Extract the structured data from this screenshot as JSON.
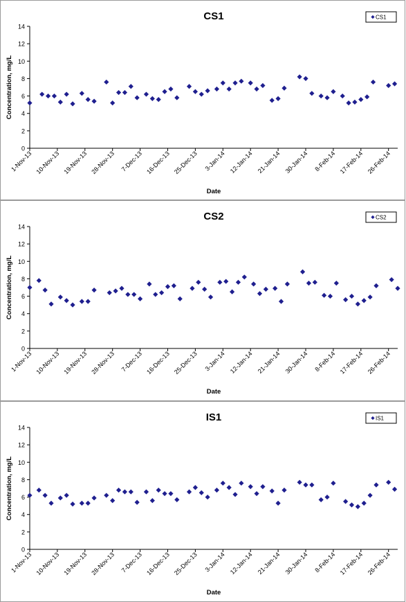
{
  "chart_data": [
    {
      "type": "scatter",
      "title": "CS1",
      "xlabel": "Date",
      "ylabel": "Concentration, mg/L",
      "ylim": [
        0,
        14
      ],
      "yticks": [
        "0",
        "2",
        "4",
        "6",
        "8",
        "10",
        "12",
        "14"
      ],
      "xlim": [
        "2013-11-01",
        "2014-03-01"
      ],
      "xtick_labels": [
        "1-Nov-13",
        "10-Nov-13",
        "19-Nov-13",
        "28-Nov-13",
        "7-Dec-13",
        "16-Dec-13",
        "25-Dec-13",
        "3-Jan-14",
        "12-Jan-14",
        "21-Jan-14",
        "30-Jan-14",
        "8-Feb-14",
        "17-Feb-14",
        "26-Feb-14"
      ],
      "grid": false,
      "legend_position": "top-right",
      "series": [
        {
          "name": "CS1",
          "color": "#1F1F8F",
          "points": [
            [
              "2013-11-01",
              5.2
            ],
            [
              "2013-11-05",
              6.2
            ],
            [
              "2013-11-07",
              6.0
            ],
            [
              "2013-11-09",
              6.0
            ],
            [
              "2013-11-11",
              5.3
            ],
            [
              "2013-11-13",
              6.2
            ],
            [
              "2013-11-15",
              5.1
            ],
            [
              "2013-11-18",
              6.3
            ],
            [
              "2013-11-20",
              5.6
            ],
            [
              "2013-11-22",
              5.4
            ],
            [
              "2013-11-26",
              7.6
            ],
            [
              "2013-11-28",
              5.2
            ],
            [
              "2013-11-30",
              6.4
            ],
            [
              "2013-12-02",
              6.4
            ],
            [
              "2013-12-04",
              7.1
            ],
            [
              "2013-12-06",
              5.8
            ],
            [
              "2013-12-09",
              6.2
            ],
            [
              "2013-12-11",
              5.7
            ],
            [
              "2013-12-13",
              5.6
            ],
            [
              "2013-12-15",
              6.5
            ],
            [
              "2013-12-17",
              6.8
            ],
            [
              "2013-12-19",
              5.8
            ],
            [
              "2013-12-23",
              7.1
            ],
            [
              "2013-12-25",
              6.5
            ],
            [
              "2013-12-27",
              6.2
            ],
            [
              "2013-12-29",
              6.6
            ],
            [
              "2014-01-01",
              6.8
            ],
            [
              "2014-01-03",
              7.5
            ],
            [
              "2014-01-05",
              6.8
            ],
            [
              "2014-01-07",
              7.5
            ],
            [
              "2014-01-09",
              7.7
            ],
            [
              "2014-01-12",
              7.5
            ],
            [
              "2014-01-14",
              6.8
            ],
            [
              "2014-01-16",
              7.2
            ],
            [
              "2014-01-19",
              5.5
            ],
            [
              "2014-01-21",
              5.7
            ],
            [
              "2014-01-23",
              6.9
            ],
            [
              "2014-01-28",
              8.2
            ],
            [
              "2014-01-30",
              8.0
            ],
            [
              "2014-02-01",
              6.3
            ],
            [
              "2014-02-04",
              6.0
            ],
            [
              "2014-02-06",
              5.8
            ],
            [
              "2014-02-08",
              6.5
            ],
            [
              "2014-02-11",
              6.0
            ],
            [
              "2014-02-13",
              5.2
            ],
            [
              "2014-02-15",
              5.3
            ],
            [
              "2014-02-17",
              5.6
            ],
            [
              "2014-02-19",
              5.9
            ],
            [
              "2014-02-21",
              7.6
            ],
            [
              "2014-02-26",
              7.2
            ],
            [
              "2014-02-28",
              7.4
            ]
          ]
        }
      ]
    },
    {
      "type": "scatter",
      "title": "CS2",
      "xlabel": "Date",
      "ylabel": "Concentration, mg/L",
      "ylim": [
        0,
        14
      ],
      "yticks": [
        "0",
        "2",
        "4",
        "6",
        "8",
        "10",
        "12",
        "14"
      ],
      "xlim": [
        "2013-11-01",
        "2014-03-01"
      ],
      "xtick_labels": [
        "1-Nov-13",
        "10-Nov-13",
        "19-Nov-13",
        "28-Nov-13",
        "7-Dec-13",
        "16-Dec-13",
        "25-Dec-13",
        "3-Jan-14",
        "12-Jan-14",
        "21-Jan-14",
        "30-Jan-14",
        "8-Feb-14",
        "17-Feb-14",
        "26-Feb-14"
      ],
      "grid": false,
      "legend_position": "top-right",
      "series": [
        {
          "name": "CS2",
          "color": "#1F1F8F",
          "points": [
            [
              "2013-11-01",
              7.0
            ],
            [
              "2013-11-04",
              7.8
            ],
            [
              "2013-11-06",
              6.7
            ],
            [
              "2013-11-08",
              5.1
            ],
            [
              "2013-11-11",
              5.9
            ],
            [
              "2013-11-13",
              5.5
            ],
            [
              "2013-11-15",
              5.0
            ],
            [
              "2013-11-18",
              5.4
            ],
            [
              "2013-11-20",
              5.4
            ],
            [
              "2013-11-22",
              6.7
            ],
            [
              "2013-11-27",
              6.4
            ],
            [
              "2013-11-29",
              6.6
            ],
            [
              "2013-12-01",
              6.9
            ],
            [
              "2013-12-03",
              6.2
            ],
            [
              "2013-12-05",
              6.2
            ],
            [
              "2013-12-07",
              5.7
            ],
            [
              "2013-12-10",
              7.4
            ],
            [
              "2013-12-12",
              6.2
            ],
            [
              "2013-12-14",
              6.4
            ],
            [
              "2013-12-16",
              7.1
            ],
            [
              "2013-12-18",
              7.2
            ],
            [
              "2013-12-20",
              5.7
            ],
            [
              "2013-12-24",
              6.9
            ],
            [
              "2013-12-26",
              7.6
            ],
            [
              "2013-12-28",
              6.8
            ],
            [
              "2013-12-30",
              5.9
            ],
            [
              "2014-01-02",
              7.6
            ],
            [
              "2014-01-04",
              7.7
            ],
            [
              "2014-01-06",
              6.5
            ],
            [
              "2014-01-08",
              7.6
            ],
            [
              "2014-01-10",
              8.2
            ],
            [
              "2014-01-13",
              7.4
            ],
            [
              "2014-01-15",
              6.3
            ],
            [
              "2014-01-17",
              6.8
            ],
            [
              "2014-01-20",
              6.9
            ],
            [
              "2014-01-22",
              5.4
            ],
            [
              "2014-01-24",
              7.4
            ],
            [
              "2014-01-29",
              8.8
            ],
            [
              "2014-01-31",
              7.5
            ],
            [
              "2014-02-02",
              7.6
            ],
            [
              "2014-02-05",
              6.1
            ],
            [
              "2014-02-07",
              6.0
            ],
            [
              "2014-02-09",
              7.5
            ],
            [
              "2014-02-12",
              5.6
            ],
            [
              "2014-02-14",
              6.0
            ],
            [
              "2014-02-16",
              5.1
            ],
            [
              "2014-02-18",
              5.5
            ],
            [
              "2014-02-20",
              5.9
            ],
            [
              "2014-02-22",
              7.2
            ],
            [
              "2014-02-27",
              7.9
            ],
            [
              "2014-03-01",
              6.9
            ]
          ]
        }
      ]
    },
    {
      "type": "scatter",
      "title": "IS1",
      "xlabel": "Date",
      "ylabel": "Concentration, mg/L",
      "ylim": [
        0,
        14
      ],
      "yticks": [
        "0",
        "2",
        "4",
        "6",
        "8",
        "10",
        "12",
        "14"
      ],
      "xlim": [
        "2013-11-01",
        "2014-03-01"
      ],
      "xtick_labels": [
        "1-Nov-13",
        "10-Nov-13",
        "19-Nov-13",
        "28-Nov-13",
        "7-Dec-13",
        "16-Dec-13",
        "25-Dec-13",
        "3-Jan-14",
        "12-Jan-14",
        "21-Jan-14",
        "30-Jan-14",
        "8-Feb-14",
        "17-Feb-14",
        "26-Feb-14"
      ],
      "grid": false,
      "legend_position": "top-right",
      "series": [
        {
          "name": "IS1",
          "color": "#1F1F8F",
          "points": [
            [
              "2013-11-01",
              6.2
            ],
            [
              "2013-11-04",
              6.8
            ],
            [
              "2013-11-06",
              6.2
            ],
            [
              "2013-11-08",
              5.3
            ],
            [
              "2013-11-11",
              5.9
            ],
            [
              "2013-11-13",
              6.2
            ],
            [
              "2013-11-15",
              5.2
            ],
            [
              "2013-11-18",
              5.3
            ],
            [
              "2013-11-20",
              5.3
            ],
            [
              "2013-11-22",
              5.9
            ],
            [
              "2013-11-26",
              6.2
            ],
            [
              "2013-11-28",
              5.6
            ],
            [
              "2013-11-30",
              6.8
            ],
            [
              "2013-12-02",
              6.6
            ],
            [
              "2013-12-04",
              6.6
            ],
            [
              "2013-12-06",
              5.4
            ],
            [
              "2013-12-09",
              6.6
            ],
            [
              "2013-12-11",
              5.6
            ],
            [
              "2013-12-13",
              6.8
            ],
            [
              "2013-12-15",
              6.4
            ],
            [
              "2013-12-17",
              6.4
            ],
            [
              "2013-12-19",
              5.7
            ],
            [
              "2013-12-23",
              6.6
            ],
            [
              "2013-12-25",
              7.1
            ],
            [
              "2013-12-27",
              6.5
            ],
            [
              "2013-12-29",
              6.0
            ],
            [
              "2014-01-01",
              6.8
            ],
            [
              "2014-01-03",
              7.6
            ],
            [
              "2014-01-05",
              7.1
            ],
            [
              "2014-01-07",
              6.3
            ],
            [
              "2014-01-09",
              7.6
            ],
            [
              "2014-01-12",
              7.2
            ],
            [
              "2014-01-14",
              6.4
            ],
            [
              "2014-01-16",
              7.2
            ],
            [
              "2014-01-19",
              6.7
            ],
            [
              "2014-01-21",
              5.3
            ],
            [
              "2014-01-23",
              6.8
            ],
            [
              "2014-01-28",
              7.7
            ],
            [
              "2014-01-30",
              7.4
            ],
            [
              "2014-02-01",
              7.4
            ],
            [
              "2014-02-04",
              5.7
            ],
            [
              "2014-02-06",
              6.0
            ],
            [
              "2014-02-08",
              7.6
            ],
            [
              "2014-02-12",
              5.5
            ],
            [
              "2014-02-14",
              5.1
            ],
            [
              "2014-02-16",
              4.9
            ],
            [
              "2014-02-18",
              5.3
            ],
            [
              "2014-02-20",
              6.2
            ],
            [
              "2014-02-22",
              7.4
            ],
            [
              "2014-02-26",
              7.7
            ],
            [
              "2014-02-28",
              6.9
            ]
          ]
        }
      ]
    }
  ]
}
